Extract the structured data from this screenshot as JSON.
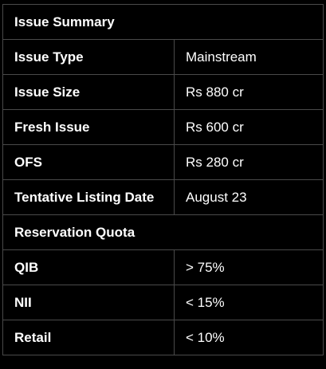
{
  "table": {
    "header": "Issue Summary",
    "rows": [
      {
        "label": "Issue Type",
        "value": "Mainstream"
      },
      {
        "label": "Issue Size",
        "value": "Rs 880 cr"
      },
      {
        "label": "Fresh Issue",
        "value": "Rs 600 cr"
      },
      {
        "label": "OFS",
        "value": "Rs 280 cr"
      },
      {
        "label": "Tentative Listing Date",
        "value": "August 23"
      }
    ],
    "reservation_header": "Reservation Quota",
    "reservation_rows": [
      {
        "label": "QIB",
        "value": "> 75%"
      },
      {
        "label": "NII",
        "value": "< 15%"
      },
      {
        "label": "Retail",
        "value": "< 10%"
      }
    ]
  }
}
